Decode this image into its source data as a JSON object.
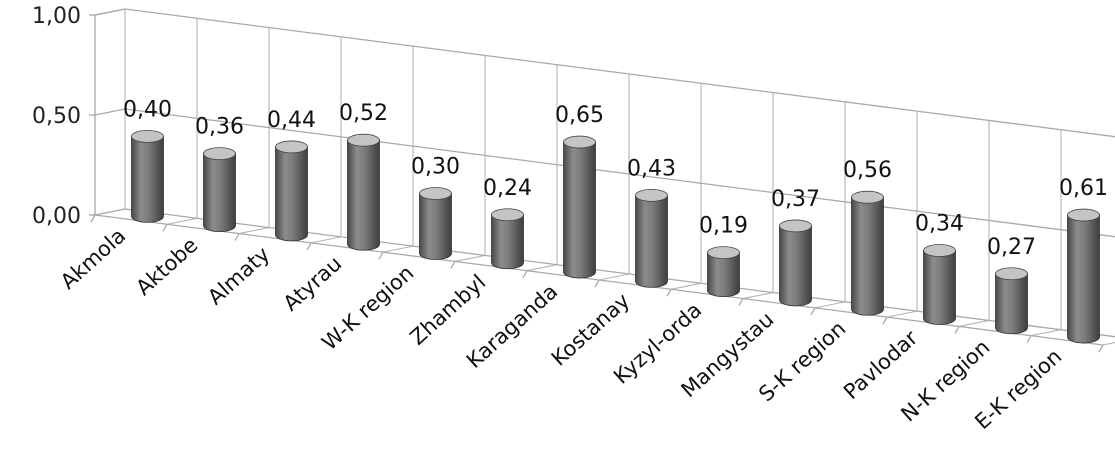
{
  "chart_data": {
    "type": "bar",
    "style": "3d-cylinder",
    "categories": [
      "Akmola",
      "Aktobe",
      "Almaty",
      "Atyrau",
      "W-K region",
      "Zhambyl",
      "Karaganda",
      "Kostanay",
      "Kyzyl-orda",
      "Mangystau",
      "S-K region",
      "Pavlodar",
      "N-K region",
      "E-K region"
    ],
    "values": [
      0.4,
      0.36,
      0.44,
      0.52,
      0.3,
      0.24,
      0.65,
      0.43,
      0.19,
      0.37,
      0.56,
      0.34,
      0.27,
      0.61
    ],
    "value_labels": [
      "0,40",
      "0,36",
      "0,44",
      "0,52",
      "0,30",
      "0,24",
      "0,65",
      "0,43",
      "0,19",
      "0,37",
      "0,56",
      "0,34",
      "0,27",
      "0,61"
    ],
    "y_ticks": [
      0,
      0.5,
      1.0
    ],
    "y_tick_labels": [
      "0,00",
      "0,50",
      "1,00"
    ],
    "ylim": [
      0,
      1
    ],
    "title": "",
    "xlabel": "",
    "ylabel": "",
    "grid": true,
    "legend": "none",
    "colors": {
      "bar_dark": "#5a5a5a",
      "bar_light": "#9a9a9a",
      "bar_top": "#c4c4c4",
      "grid": "#a9a9a9"
    }
  }
}
